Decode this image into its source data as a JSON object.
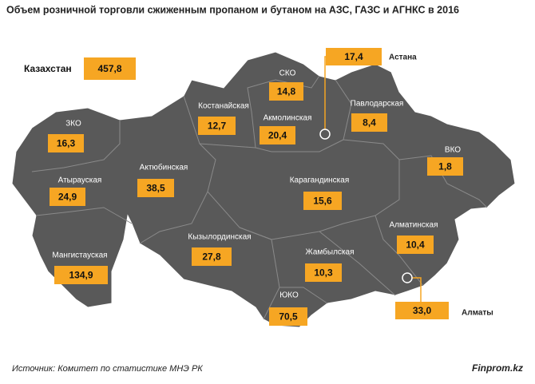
{
  "title": "Объем розничной торговли сжиженным пропаном и бутаном на АЗС, ГАЗС и АГНКС в 2016",
  "total": {
    "name": "Казахстан",
    "value": "457,8"
  },
  "regions": [
    {
      "name": "СКО",
      "value": "14,8"
    },
    {
      "name": "Костанайская",
      "value": "12,7"
    },
    {
      "name": "Акмолинская",
      "value": "20,4"
    },
    {
      "name": "Павлодарская",
      "value": "8,4"
    },
    {
      "name": "ЗКО",
      "value": "16,3"
    },
    {
      "name": "ВКО",
      "value": "1,8"
    },
    {
      "name": "Актюбинская",
      "value": "38,5"
    },
    {
      "name": "Атырауская",
      "value": "24,9"
    },
    {
      "name": "Карагандинская",
      "value": "15,6"
    },
    {
      "name": "Алматинская",
      "value": "10,4"
    },
    {
      "name": "Кызылординская",
      "value": "27,8"
    },
    {
      "name": "Мангистауская",
      "value": "134,9"
    },
    {
      "name": "Жамбылская",
      "value": "10,3"
    },
    {
      "name": "ЮКО",
      "value": "70,5"
    }
  ],
  "cities": [
    {
      "name": "Астана",
      "value": "17,4"
    },
    {
      "name": "Алматы",
      "value": "33,0"
    }
  ],
  "source": "Источник:  Комитет по статистике МНЭ РК",
  "brand": "Finprom.kz"
}
